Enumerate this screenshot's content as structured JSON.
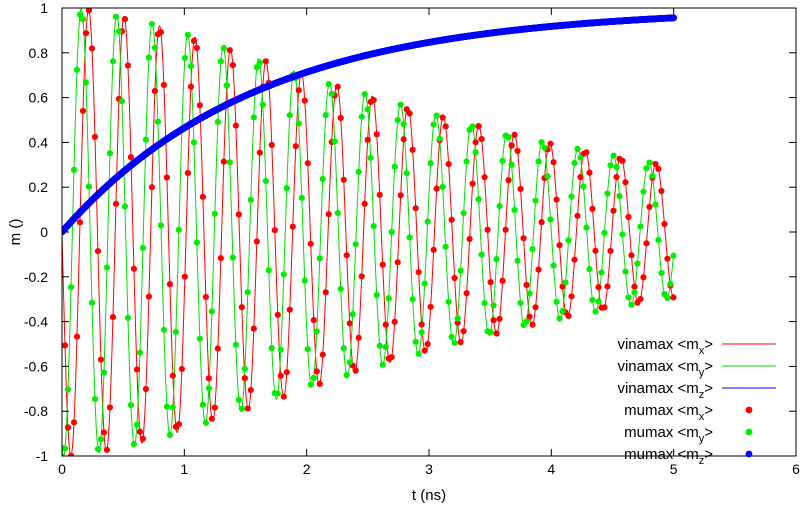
{
  "chart_data": {
    "type": "line",
    "xlabel": "t (ns)",
    "ylabel": "m ()",
    "xlim": [
      0,
      6
    ],
    "ylim": [
      -1,
      1
    ],
    "xticks": [
      "0",
      "1",
      "2",
      "3",
      "4",
      "5",
      "6"
    ],
    "yticks": [
      "-1",
      "-0.8",
      "-0.6",
      "-0.4",
      "-0.2",
      "0",
      "0.2",
      "0.4",
      "0.6",
      "0.8",
      "1"
    ],
    "legend_position": "bottom-right",
    "grid": false,
    "t_range": [
      0,
      5
    ],
    "oscillation": {
      "period_ns": 0.29,
      "my_phase_lead_ns": 0.06,
      "mz_approx": "1 - exp(-t/1.6)"
    },
    "series": [
      {
        "name_prefix": "vinamax <m",
        "name_sub": "x",
        "name_suffix": ">",
        "style": "line",
        "color": "#ff0000",
        "component": "x"
      },
      {
        "name_prefix": "vinamax <m",
        "name_sub": "y",
        "name_suffix": ">",
        "style": "line",
        "color": "#00dd00",
        "component": "y"
      },
      {
        "name_prefix": "vinamax <m",
        "name_sub": "z",
        "name_suffix": ">",
        "style": "line",
        "color": "#0000ff",
        "component": "z"
      },
      {
        "name_prefix": "mumax <m",
        "name_sub": "x",
        "name_suffix": ">",
        "style": "points",
        "color": "#ff0000",
        "component": "x"
      },
      {
        "name_prefix": "mumax <m",
        "name_sub": "y",
        "name_suffix": ">",
        "style": "points",
        "color": "#00ee00",
        "component": "y"
      },
      {
        "name_prefix": "mumax <m",
        "name_sub": "z",
        "name_suffix": ">",
        "style": "points",
        "color": "#0000ff",
        "component": "z"
      }
    ]
  }
}
